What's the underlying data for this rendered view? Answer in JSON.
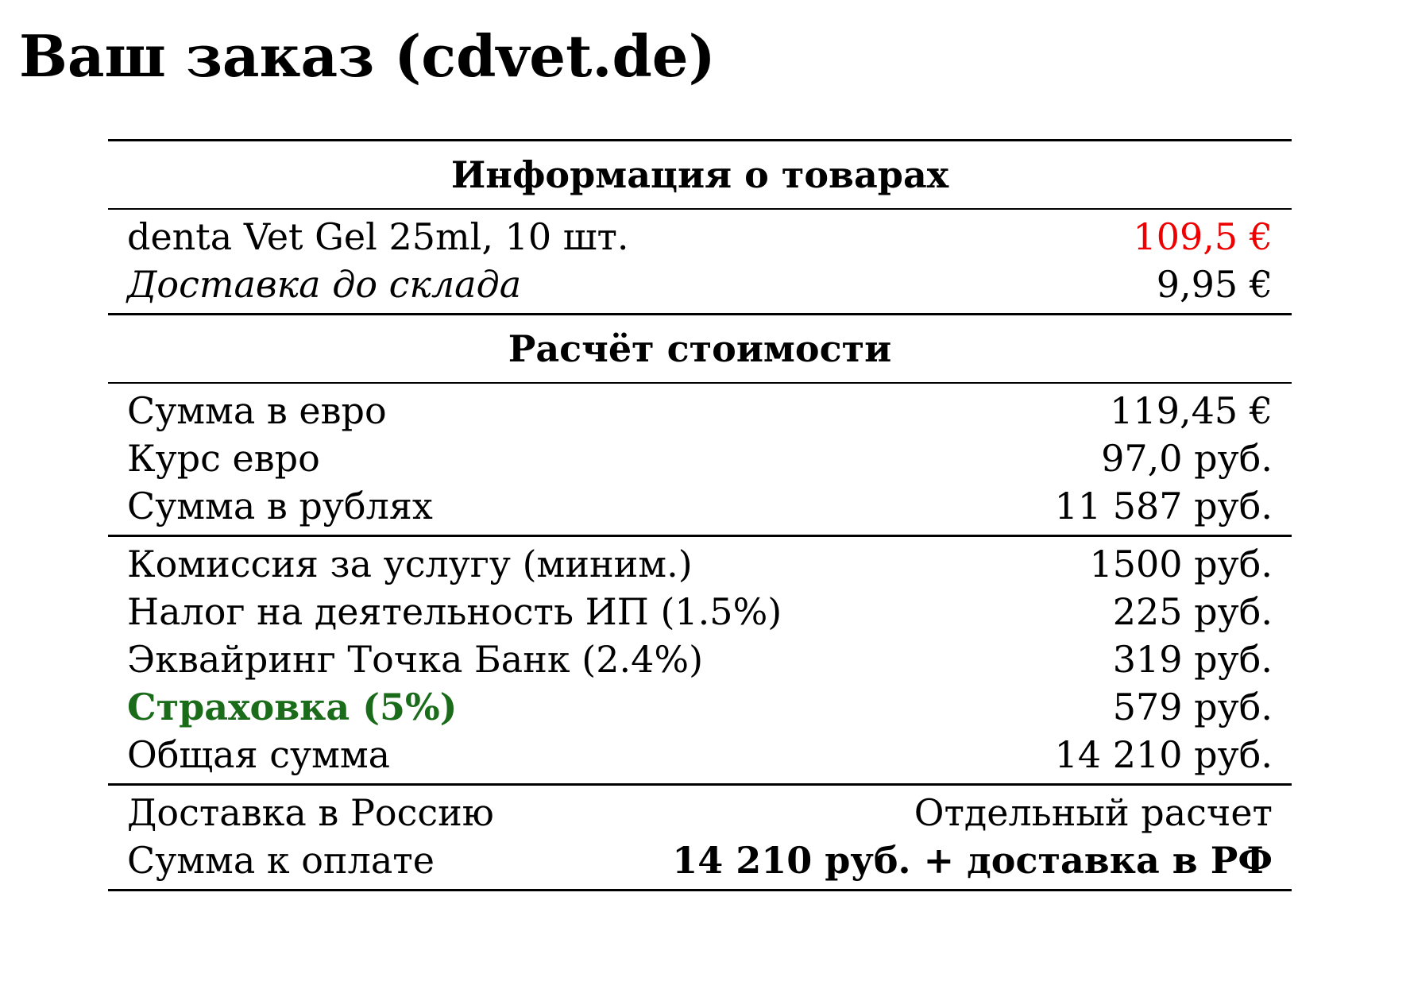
{
  "page": {
    "title": "Ваш заказ (cdvet.de)"
  },
  "colors": {
    "price_highlight": "#ee0000",
    "insurance_highlight": "#1a6b1a"
  },
  "products_section": {
    "header": "Информация о товарах",
    "items": [
      {
        "label": "denta Vet Gel 25ml, 10 шт.",
        "value": "109,5 €"
      },
      {
        "label": "Доставка до склада",
        "value": "9,95 €"
      }
    ]
  },
  "calculation_section": {
    "header": "Расчёт стоимости",
    "conversion": [
      {
        "label": "Сумма в евро",
        "value": "119,45 €"
      },
      {
        "label": "Курс евро",
        "value": "97,0 руб."
      },
      {
        "label": "Сумма в рублях",
        "value": "11 587 руб."
      }
    ],
    "fees": [
      {
        "label": "Комиссия за услугу (миним.)",
        "value": "1500 руб."
      },
      {
        "label": "Налог на деятельность ИП (1.5%)",
        "value": "225 руб."
      },
      {
        "label": "Эквайринг Точка Банк (2.4%)",
        "value": "319 руб."
      },
      {
        "label": "Страховка (5%)",
        "value": "579 руб."
      },
      {
        "label": "Общая сумма",
        "value": "14 210 руб."
      }
    ],
    "payment": [
      {
        "label": "Доставка в Россию",
        "value": "Отдельный расчет"
      },
      {
        "label": "Сумма к оплате",
        "value": "14 210 руб. + доставка в РФ"
      }
    ]
  }
}
